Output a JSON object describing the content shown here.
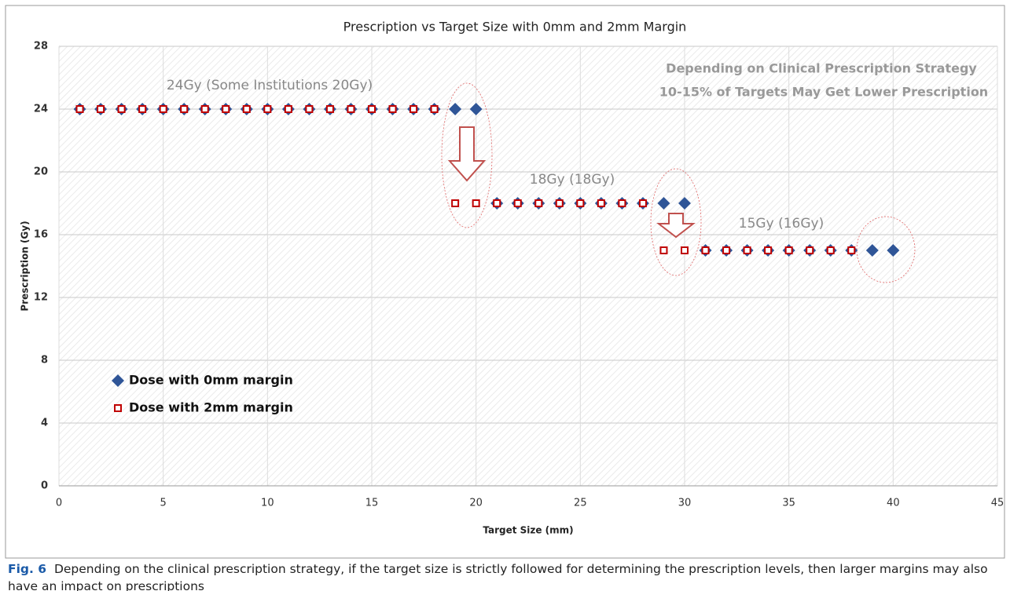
{
  "chart_data": {
    "type": "scatter",
    "title": "Prescription vs Target Size with 0mm and 2mm Margin",
    "x_label": "Target Size (mm)",
    "y_label": "Prescription (Gy)",
    "xlim": [
      0,
      45
    ],
    "xticks": [
      0,
      5,
      10,
      15,
      20,
      25,
      30,
      35,
      40,
      45
    ],
    "ylim": [
      0,
      28
    ],
    "yticks": [
      0,
      4,
      8,
      12,
      16,
      20,
      24,
      28
    ],
    "grid": true,
    "legend": "center left",
    "annotations": [
      "24Gy (Some Institutions 20Gy)",
      "18Gy (18Gy)",
      "15Gy (16Gy)",
      "Depending on Clinical Prescription Strategy",
      "10-15% of Targets May Get Lower Prescription"
    ],
    "series": [
      {
        "name": "Dose with 0mm margin",
        "color": "#2f5597",
        "marker": "diamond",
        "x": [
          1,
          2,
          3,
          4,
          5,
          6,
          7,
          8,
          9,
          10,
          11,
          12,
          13,
          14,
          15,
          16,
          17,
          18,
          19,
          20,
          21,
          22,
          23,
          24,
          25,
          26,
          27,
          28,
          29,
          30,
          31,
          32,
          33,
          34,
          35,
          36,
          37,
          38,
          39,
          40
        ],
        "values": [
          24,
          24,
          24,
          24,
          24,
          24,
          24,
          24,
          24,
          24,
          24,
          24,
          24,
          24,
          24,
          24,
          24,
          24,
          24,
          24,
          18,
          18,
          18,
          18,
          18,
          18,
          18,
          18,
          18,
          18,
          15,
          15,
          15,
          15,
          15,
          15,
          15,
          15,
          15,
          15
        ]
      },
      {
        "name": "Dose with 2mm margin",
        "color": "#c00000",
        "marker": "square",
        "x": [
          1,
          2,
          3,
          4,
          5,
          6,
          7,
          8,
          9,
          10,
          11,
          12,
          13,
          14,
          15,
          16,
          17,
          18,
          19,
          20,
          21,
          22,
          23,
          24,
          25,
          26,
          27,
          28,
          29,
          30,
          31,
          32,
          33,
          34,
          35,
          36,
          37,
          38
        ],
        "values": [
          24,
          24,
          24,
          24,
          24,
          24,
          24,
          24,
          24,
          24,
          24,
          24,
          24,
          24,
          24,
          24,
          24,
          24,
          18,
          18,
          18,
          18,
          18,
          18,
          18,
          18,
          18,
          18,
          15,
          15,
          15,
          15,
          15,
          15,
          15,
          15,
          15,
          15
        ]
      }
    ]
  },
  "caption": {
    "label": "Fig. 6",
    "text": "Depending on the clinical prescription strategy, if the target size is strictly followed for determining the prescription levels, then larger margins may also have an impact on prescriptions"
  }
}
